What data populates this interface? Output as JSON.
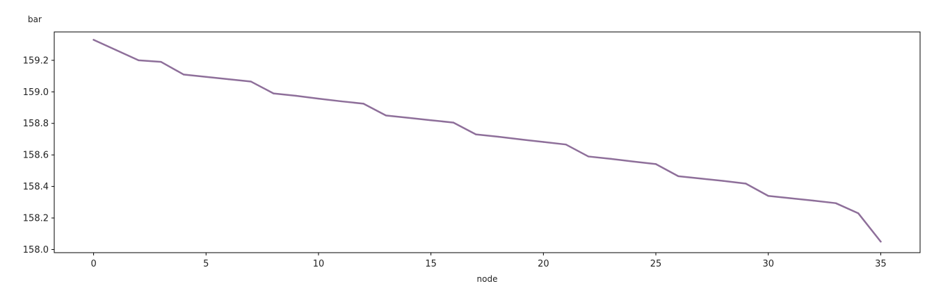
{
  "chart_data": {
    "type": "line",
    "xlabel": "node",
    "ylabel": "bar",
    "xlim": [
      -1.75,
      36.75
    ],
    "ylim": [
      157.98,
      159.38
    ],
    "xticks": [
      0,
      5,
      10,
      15,
      20,
      25,
      30,
      35
    ],
    "yticks": [
      158.0,
      158.2,
      158.4,
      158.6,
      158.8,
      159.0,
      159.2
    ],
    "x_tick_labels": [
      "0",
      "5",
      "10",
      "15",
      "20",
      "25",
      "30",
      "35"
    ],
    "y_tick_labels": [
      "158.0",
      "158.2",
      "158.4",
      "158.6",
      "158.8",
      "159.0",
      "159.2"
    ],
    "grid": false,
    "series": [
      {
        "color": "#8e6f9a",
        "x": [
          0,
          1,
          2,
          3,
          4,
          5,
          6,
          7,
          8,
          9,
          10,
          11,
          12,
          13,
          14,
          15,
          16,
          17,
          18,
          19,
          20,
          21,
          22,
          23,
          24,
          25,
          26,
          27,
          28,
          29,
          30,
          31,
          32,
          33,
          34,
          35
        ],
        "values": [
          159.33,
          159.265,
          159.2,
          159.19,
          159.11,
          159.095,
          159.08,
          159.065,
          158.99,
          158.975,
          158.957,
          158.94,
          158.925,
          158.85,
          158.835,
          158.82,
          158.805,
          158.73,
          158.715,
          158.698,
          158.682,
          158.666,
          158.59,
          158.575,
          158.558,
          158.542,
          158.465,
          158.45,
          158.435,
          158.418,
          158.34,
          158.325,
          158.31,
          158.294,
          158.23,
          158.05
        ]
      }
    ]
  }
}
